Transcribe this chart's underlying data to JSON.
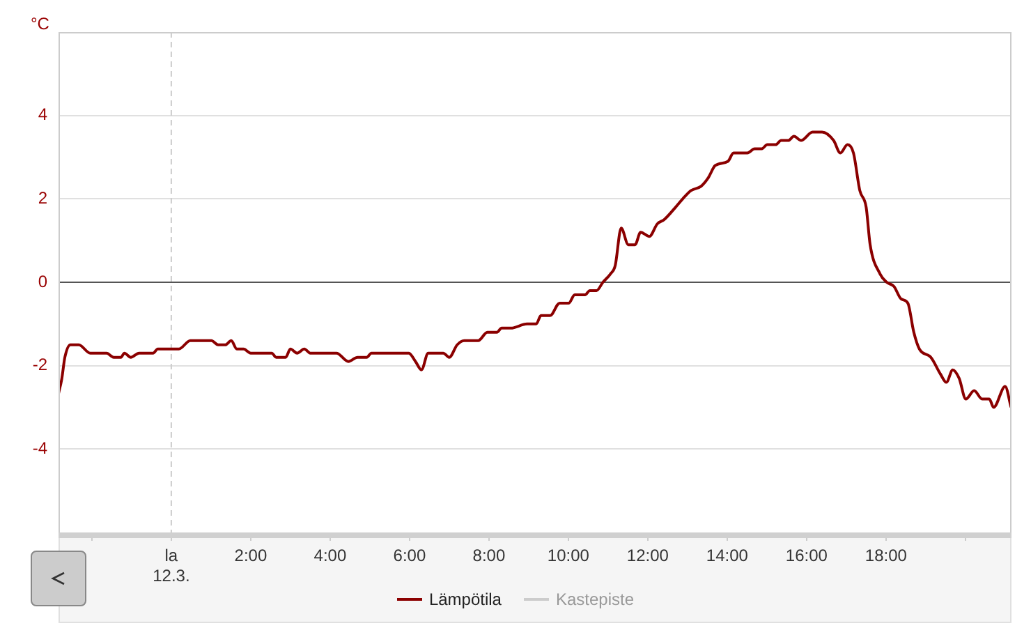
{
  "chart_data": {
    "type": "line",
    "ylabel": "°C",
    "xlim": [
      -2.84,
      21.16
    ],
    "xticks": [
      {
        "value": -2,
        "label": null
      },
      {
        "value": 0,
        "label": "la\n12.3."
      },
      {
        "value": 2,
        "label": "2:00"
      },
      {
        "value": 4,
        "label": "4:00"
      },
      {
        "value": 6,
        "label": "6:00"
      },
      {
        "value": 8,
        "label": "8:00"
      },
      {
        "value": 10,
        "label": "10:00"
      },
      {
        "value": 12,
        "label": "12:00"
      },
      {
        "value": 14,
        "label": "14:00"
      },
      {
        "value": 16,
        "label": "16:00"
      },
      {
        "value": 18,
        "label": "18:00"
      },
      {
        "value": 20,
        "label": null
      }
    ],
    "ylim": [
      -6,
      6
    ],
    "yticks": [
      -4,
      -2,
      0,
      2,
      4
    ],
    "grid": "y",
    "legend": "bottom",
    "marker": "none",
    "line_style": "solid",
    "ref_lines": [
      {
        "axis": "y",
        "value": 0,
        "color": "#555555",
        "line_style": "solid"
      },
      {
        "axis": "x",
        "value": 0,
        "color": "#cccccc",
        "line_style": "dashed"
      }
    ],
    "x": [
      -2.84,
      -2.76,
      -2.68,
      -2.54,
      -2.33,
      -2.04,
      -1.63,
      -1.45,
      -1.27,
      -1.18,
      -1.02,
      -0.81,
      -0.46,
      -0.34,
      0.19,
      0.48,
      1.01,
      1.18,
      1.36,
      1.51,
      1.65,
      1.82,
      2.0,
      2.53,
      2.64,
      2.88,
      3.0,
      3.17,
      3.35,
      3.5,
      4.16,
      4.46,
      4.69,
      4.92,
      5.04,
      5.98,
      6.15,
      6.3,
      6.47,
      6.85,
      7.0,
      7.2,
      7.38,
      7.73,
      7.96,
      8.2,
      8.32,
      8.55,
      8.96,
      9.19,
      9.31,
      9.54,
      9.78,
      10.01,
      10.16,
      10.42,
      10.54,
      10.71,
      10.87,
      11.06,
      11.18,
      11.33,
      11.51,
      11.68,
      11.82,
      12.04,
      12.24,
      12.41,
      12.7,
      12.88,
      13.09,
      13.34,
      13.52,
      13.7,
      14.02,
      14.16,
      14.51,
      14.69,
      14.87,
      15.01,
      15.22,
      15.36,
      15.54,
      15.68,
      15.86,
      16.15,
      16.39,
      16.68,
      16.85,
      17.03,
      17.18,
      17.34,
      17.5,
      17.6,
      17.85,
      18.02,
      18.2,
      18.38,
      18.55,
      18.7,
      18.84,
      19.13,
      19.37,
      19.52,
      19.68,
      19.84,
      20.01,
      20.22,
      20.42,
      20.6,
      20.71,
      21.0,
      21.15
    ],
    "series": [
      {
        "name": "Lämpötila",
        "color": "#8b0000",
        "values": [
          -2.67,
          -2.33,
          -1.8,
          -1.5,
          -1.5,
          -1.7,
          -1.7,
          -1.8,
          -1.8,
          -1.7,
          -1.8,
          -1.7,
          -1.7,
          -1.6,
          -1.6,
          -1.4,
          -1.4,
          -1.5,
          -1.5,
          -1.4,
          -1.6,
          -1.6,
          -1.7,
          -1.7,
          -1.8,
          -1.8,
          -1.6,
          -1.7,
          -1.6,
          -1.7,
          -1.7,
          -1.9,
          -1.8,
          -1.8,
          -1.7,
          -1.7,
          -1.9,
          -2.1,
          -1.7,
          -1.7,
          -1.8,
          -1.5,
          -1.4,
          -1.4,
          -1.2,
          -1.2,
          -1.1,
          -1.1,
          -1.0,
          -1.0,
          -0.8,
          -0.8,
          -0.5,
          -0.5,
          -0.3,
          -0.3,
          -0.2,
          -0.2,
          0.0,
          0.2,
          0.4,
          1.3,
          0.9,
          0.9,
          1.2,
          1.1,
          1.4,
          1.5,
          1.8,
          2.0,
          2.2,
          2.3,
          2.5,
          2.8,
          2.9,
          3.1,
          3.1,
          3.2,
          3.2,
          3.3,
          3.3,
          3.4,
          3.4,
          3.5,
          3.4,
          3.6,
          3.6,
          3.4,
          3.1,
          3.3,
          3.1,
          2.2,
          1.8,
          0.9,
          0.2,
          0.0,
          -0.1,
          -0.4,
          -0.5,
          -1.2,
          -1.6,
          -1.8,
          -2.2,
          -2.4,
          -2.1,
          -2.3,
          -2.8,
          -2.6,
          -2.8,
          -2.8,
          -3.0,
          -2.5,
          -3.0
        ]
      },
      {
        "name": "Kastepiste",
        "color": "#cccccc",
        "values": [
          null,
          null,
          null,
          null,
          null,
          null,
          null,
          null,
          null,
          null,
          null,
          null,
          null,
          null,
          null,
          null,
          null,
          null,
          null,
          null,
          null,
          null,
          null,
          null,
          null,
          null,
          null,
          null,
          null,
          null,
          null,
          null,
          null,
          null,
          null,
          null,
          null,
          null,
          null,
          null,
          null,
          null,
          null,
          null,
          null,
          null,
          null,
          null,
          null,
          null,
          null,
          null,
          null,
          null,
          null,
          null,
          null,
          null,
          null,
          null,
          null,
          null,
          null,
          null,
          null,
          null,
          null,
          null,
          null,
          null,
          null,
          null,
          null,
          null,
          null,
          null,
          null,
          null,
          null,
          null,
          null,
          null,
          null,
          null,
          null,
          null,
          null,
          null,
          null,
          null,
          null,
          null,
          null,
          null,
          null,
          null,
          null,
          null,
          null,
          null,
          null,
          null,
          null,
          null,
          null,
          null,
          null,
          null,
          null,
          null,
          null,
          null,
          null
        ]
      }
    ]
  }
}
